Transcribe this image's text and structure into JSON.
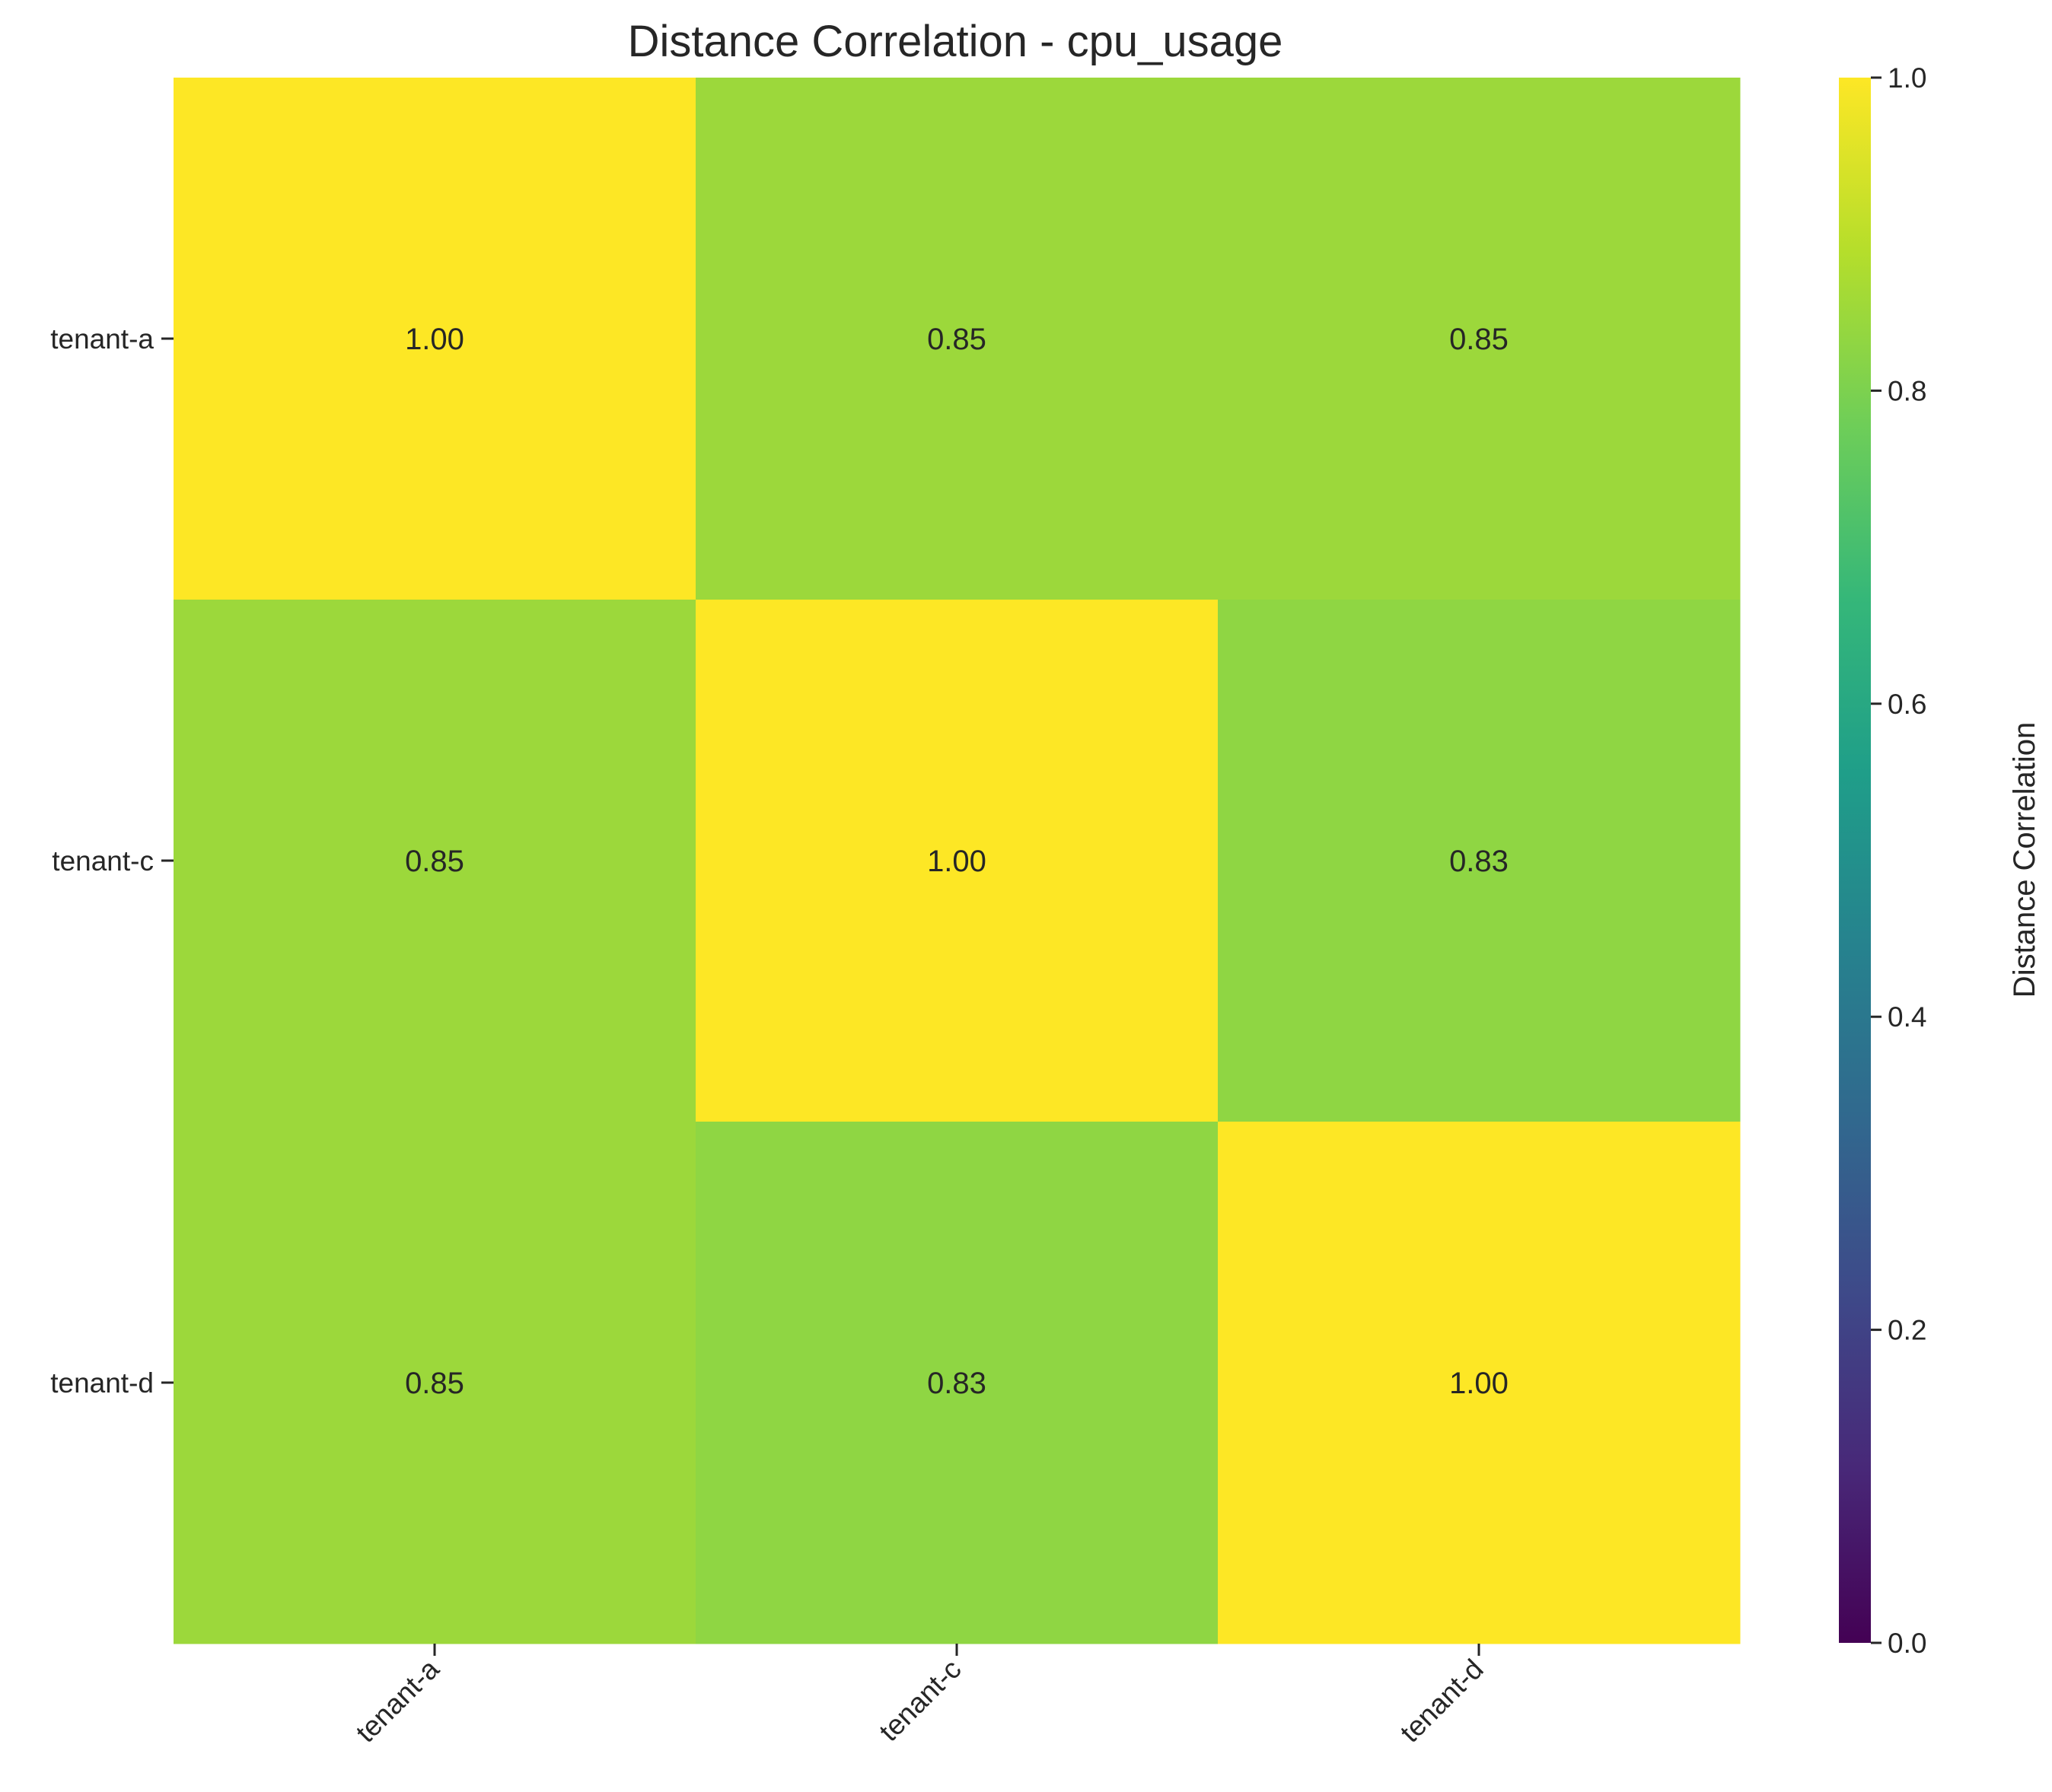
{
  "chart_data": {
    "type": "heatmap",
    "title": "Distance Correlation - cpu_usage",
    "rows": [
      "tenant-a",
      "tenant-c",
      "tenant-d"
    ],
    "columns": [
      "tenant-a",
      "tenant-c",
      "tenant-d"
    ],
    "values": [
      [
        1.0,
        0.85,
        0.85
      ],
      [
        0.85,
        1.0,
        0.83
      ],
      [
        0.85,
        0.83,
        1.0
      ]
    ],
    "value_format": "0.00",
    "colormap": "viridis",
    "colorbar": {
      "label": "Distance Correlation",
      "range": [
        0.0,
        1.0
      ],
      "ticks": [
        "0.0",
        "0.2",
        "0.4",
        "0.6",
        "0.8",
        "1.0"
      ]
    },
    "colors": {
      "viridis": [
        "#440154",
        "#482878",
        "#3e4989",
        "#31688e",
        "#26828e",
        "#1f9e89",
        "#35b779",
        "#6ece58",
        "#b5de2b",
        "#fde725"
      ]
    }
  }
}
